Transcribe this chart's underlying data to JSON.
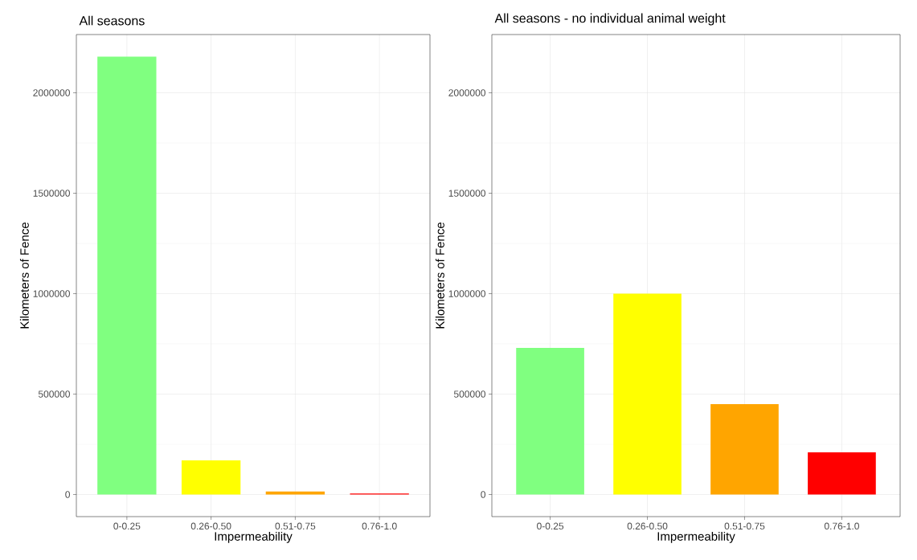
{
  "chart_data": [
    {
      "type": "bar",
      "title": "All seasons",
      "xlabel": "Impermeability",
      "ylabel": "Kilometers of Fence",
      "categories": [
        "0-0.25",
        "0.26-0.50",
        "0.51-0.75",
        "0.76-1.0"
      ],
      "values": [
        2180000,
        170000,
        15000,
        5000
      ],
      "colors": [
        "#80ff80",
        "#ffff00",
        "#ffa500",
        "#ff0000"
      ],
      "ylim": [
        -110000,
        2290000
      ],
      "yticks": [
        0,
        500000,
        1000000,
        1500000,
        2000000
      ],
      "grid": true
    },
    {
      "type": "bar",
      "title": "All seasons - no individual animal weight",
      "xlabel": "Impermeability",
      "ylabel": "Kilometers of Fence",
      "categories": [
        "0-0.25",
        "0.26-0.50",
        "0.51-0.75",
        "0.76-1.0"
      ],
      "values": [
        730000,
        1000000,
        450000,
        210000
      ],
      "colors": [
        "#80ff80",
        "#ffff00",
        "#ffa500",
        "#ff0000"
      ],
      "ylim": [
        -110000,
        2290000
      ],
      "yticks": [
        0,
        500000,
        1000000,
        1500000,
        2000000
      ],
      "grid": true
    }
  ]
}
